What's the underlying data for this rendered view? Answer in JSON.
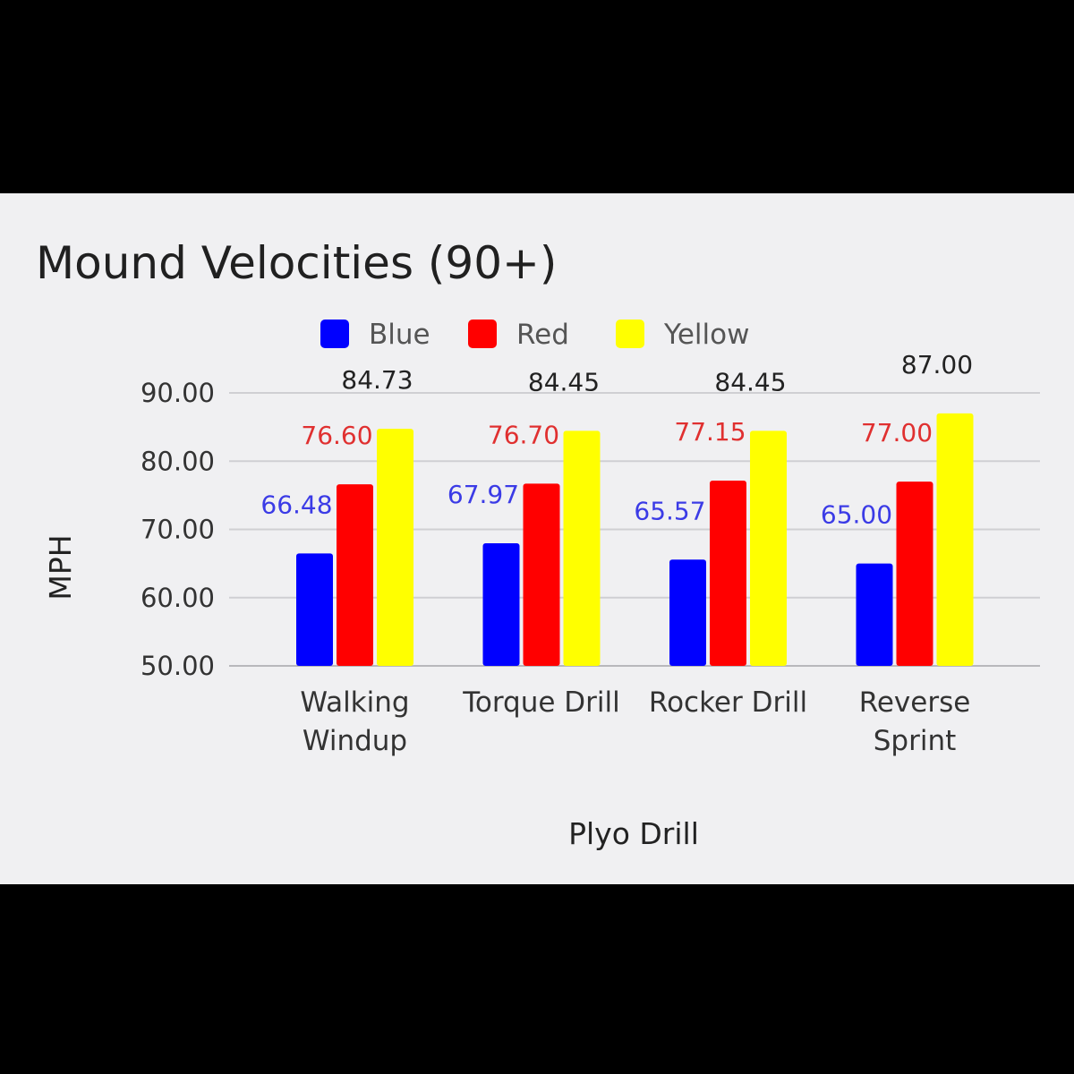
{
  "chart_data": {
    "type": "bar",
    "title": "Mound Velocities (90+)",
    "xlabel": "Plyo Drill",
    "ylabel": "MPH",
    "ylim": [
      50,
      90
    ],
    "yticks": [
      "50.00",
      "60.00",
      "70.00",
      "80.00",
      "90.00"
    ],
    "grid": true,
    "legend_position": "top",
    "categories": [
      [
        "Walking",
        "Windup"
      ],
      [
        "Torque Drill"
      ],
      [
        "Rocker Drill"
      ],
      [
        "Reverse",
        "Sprint"
      ]
    ],
    "series": [
      {
        "name": "Blue",
        "color": "#0000ff",
        "label_color": "#3b3be6",
        "values": [
          66.48,
          67.97,
          65.57,
          65.0
        ],
        "labels": [
          "66.48",
          "67.97",
          "65.57",
          "65.00"
        ]
      },
      {
        "name": "Red",
        "color": "#ff0000",
        "label_color": "#e03030",
        "values": [
          76.6,
          76.7,
          77.15,
          77.0
        ],
        "labels": [
          "76.60",
          "76.70",
          "77.15",
          "77.00"
        ]
      },
      {
        "name": "Yellow",
        "color": "#ffff00",
        "label_color": "#222222",
        "values": [
          84.73,
          84.45,
          84.45,
          87.0
        ],
        "labels": [
          "84.73",
          "84.45",
          "84.45",
          "87.00"
        ]
      }
    ]
  }
}
